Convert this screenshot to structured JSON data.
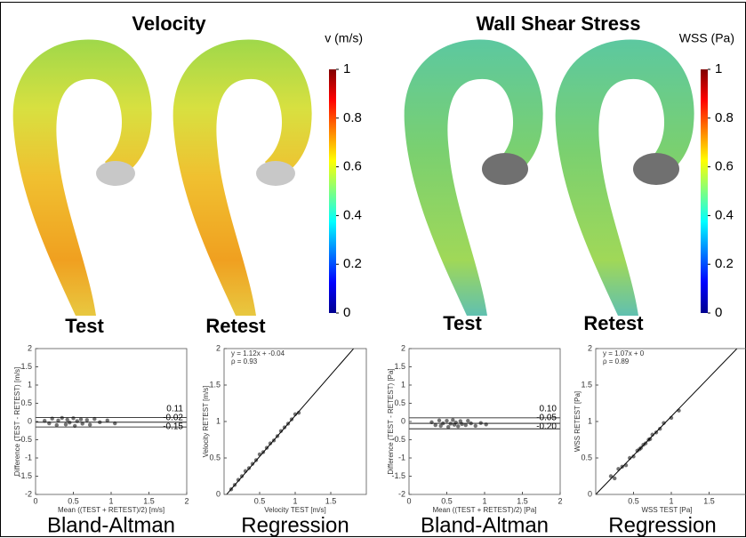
{
  "panels": [
    {
      "title": "Velocity",
      "test": "Test",
      "retest": "Retest"
    },
    {
      "title": "Wall Shear Stress",
      "test": "Test",
      "retest": "Retest"
    }
  ],
  "chart_data": [
    {
      "type": "colorbar",
      "title": "v (m/s)",
      "colormap": "jet",
      "ylim": [
        0,
        1
      ],
      "yticks": [
        0,
        0.2,
        0.4,
        0.6,
        0.8,
        1
      ]
    },
    {
      "type": "colorbar",
      "title": "WSS (Pa)",
      "colormap": "jet",
      "ylim": [
        0,
        1
      ],
      "yticks": [
        0,
        0.2,
        0.4,
        0.6,
        0.8,
        1
      ]
    },
    {
      "type": "scatter",
      "caption": "Bland-Altman",
      "xlabel": "Mean ((TEST + RETEST)/2) [m/s]",
      "ylabel": "Difference (TEST - RETEST) [m/s]",
      "color": "#000000",
      "xlim": [
        0,
        2
      ],
      "ylim": [
        -2,
        2
      ],
      "xticks": [
        0,
        0.5,
        1,
        1.5,
        2
      ],
      "yticks": [
        -2,
        -1.5,
        -1,
        -0.5,
        0,
        0.5,
        1,
        1.5,
        2
      ],
      "hlines": [
        0.11,
        -0.02,
        -0.15
      ],
      "x": [
        0.12,
        0.18,
        0.22,
        0.28,
        0.3,
        0.35,
        0.4,
        0.42,
        0.45,
        0.5,
        0.52,
        0.55,
        0.6,
        0.62,
        0.68,
        0.72,
        0.78,
        0.85,
        0.95,
        1.05
      ],
      "values": [
        0.02,
        -0.05,
        0.08,
        -0.1,
        0.03,
        0.1,
        -0.08,
        0.05,
        -0.03,
        0.09,
        -0.12,
        0.01,
        0.06,
        -0.06,
        0.04,
        -0.09,
        0.07,
        -0.02,
        0.03,
        -0.05
      ]
    },
    {
      "type": "scatter",
      "caption": "Regression",
      "xlabel": "Velocity TEST [m/s]",
      "ylabel": "Velocity RETEST [m/s]",
      "color": "#000000",
      "equation": "y = 1.12x + -0.04",
      "rho": "ρ = 0.93",
      "fit": {
        "slope": 1.12,
        "intercept": -0.04
      },
      "xlim": [
        0,
        2
      ],
      "ylim": [
        0,
        2
      ],
      "xticks": [
        0.5,
        1,
        1.5
      ],
      "yticks": [
        0,
        0.5,
        1,
        1.5,
        2
      ],
      "x": [
        0.1,
        0.15,
        0.2,
        0.25,
        0.3,
        0.35,
        0.4,
        0.45,
        0.5,
        0.55,
        0.6,
        0.65,
        0.7,
        0.75,
        0.8,
        0.85,
        0.9,
        0.95,
        1.0,
        1.05
      ],
      "values": [
        0.07,
        0.13,
        0.2,
        0.25,
        0.32,
        0.36,
        0.42,
        0.47,
        0.55,
        0.58,
        0.64,
        0.7,
        0.74,
        0.8,
        0.87,
        0.92,
        0.97,
        1.03,
        1.1,
        1.12
      ]
    },
    {
      "type": "scatter",
      "caption": "Bland-Altman",
      "xlabel": "Mean ((TEST + RETEST)/2) [Pa]",
      "ylabel": "Difference (TEST - RETEST) [Pa]",
      "color": "#000000",
      "xlim": [
        0,
        2
      ],
      "ylim": [
        -2,
        2
      ],
      "xticks": [
        0,
        0.5,
        1,
        1.5,
        2
      ],
      "yticks": [
        -2,
        -1.5,
        -1,
        -0.5,
        0,
        0.5,
        1,
        1.5,
        2
      ],
      "hlines": [
        {
          "value": 0.1,
          "label": "0.10"
        },
        -0.05,
        {
          "value": -0.2,
          "label": "-0.20"
        }
      ],
      "x": [
        0.3,
        0.35,
        0.4,
        0.42,
        0.45,
        0.5,
        0.52,
        0.55,
        0.58,
        0.6,
        0.62,
        0.65,
        0.68,
        0.7,
        0.75,
        0.78,
        0.82,
        0.88,
        0.95,
        1.02
      ],
      "values": [
        -0.02,
        -0.1,
        0.03,
        -0.12,
        -0.05,
        0.02,
        -0.15,
        -0.06,
        0.04,
        -0.09,
        -0.03,
        -0.13,
        0.01,
        -0.07,
        -0.1,
        0.02,
        -0.05,
        -0.12,
        -0.04,
        -0.08
      ]
    },
    {
      "type": "scatter",
      "caption": "Regression",
      "xlabel": "WSS TEST [Pa]",
      "ylabel": "WSS RETEST [Pa]",
      "color": "#000000",
      "equation": "y = 1.07x + 0",
      "rho": "ρ = 0.89",
      "fit": {
        "slope": 1.07,
        "intercept": 0
      },
      "xlim": [
        0,
        2
      ],
      "ylim": [
        0,
        2
      ],
      "xticks": [
        0.5,
        1,
        1.5
      ],
      "yticks": [
        0,
        0.5,
        1,
        1.5,
        2
      ],
      "x": [
        0.2,
        0.25,
        0.3,
        0.35,
        0.4,
        0.45,
        0.5,
        0.55,
        0.58,
        0.6,
        0.63,
        0.66,
        0.7,
        0.72,
        0.75,
        0.8,
        0.85,
        0.9,
        1.0,
        1.1
      ],
      "values": [
        0.25,
        0.22,
        0.35,
        0.38,
        0.4,
        0.5,
        0.52,
        0.6,
        0.62,
        0.64,
        0.68,
        0.7,
        0.75,
        0.76,
        0.82,
        0.85,
        0.9,
        0.98,
        1.05,
        1.15
      ]
    }
  ]
}
